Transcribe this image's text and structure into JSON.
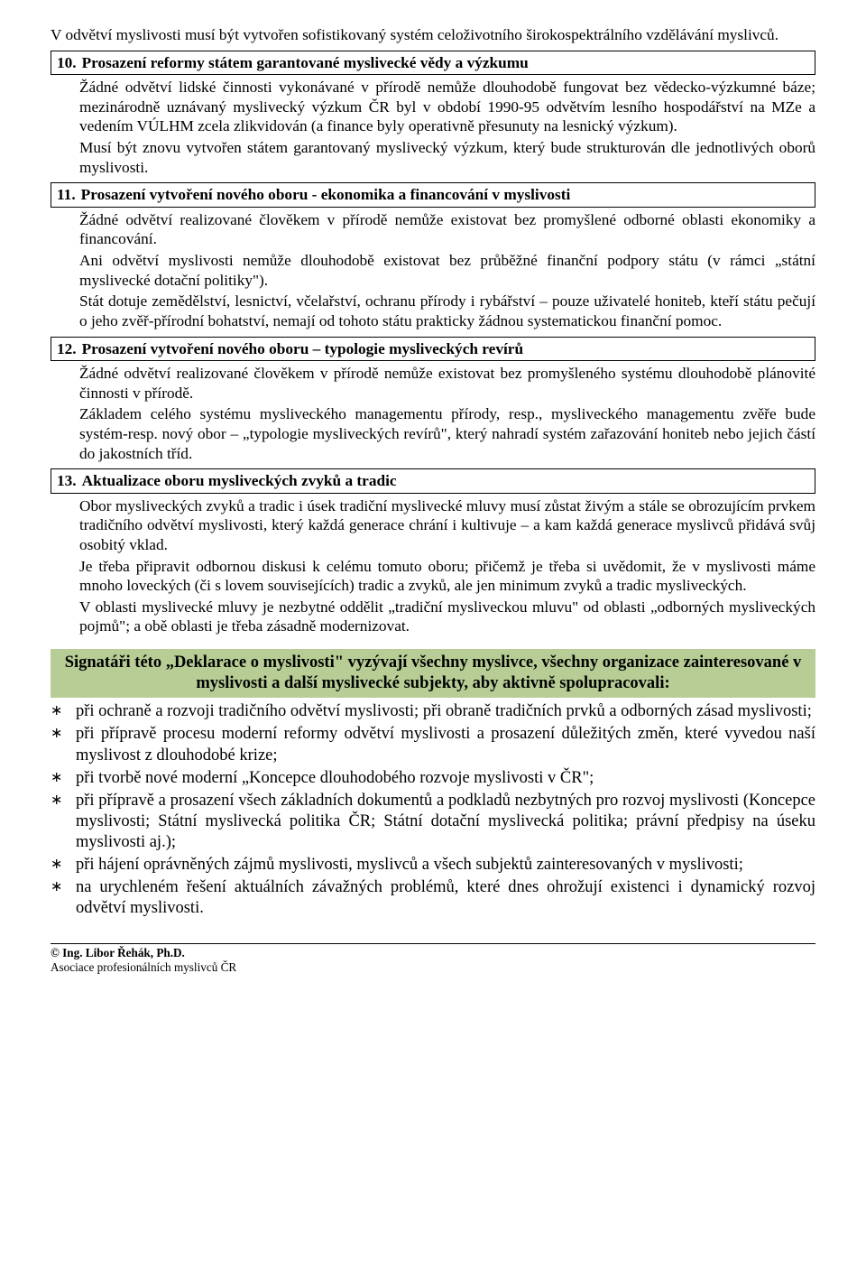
{
  "intro": "V odvětví myslivosti musí být vytvořen sofistikovaný systém celoživotního širokospektrálního vzdělávání myslivců.",
  "sections": [
    {
      "num": "10.",
      "title": "Prosazení reformy státem garantované myslivecké vědy a výzkumu",
      "paragraphs": [
        "Žádné odvětví lidské činnosti vykonávané v přírodě nemůže dlouhodobě fungovat bez vědecko-výzkumné báze; mezinárodně uznávaný myslivecký výzkum ČR byl v období 1990-95 odvětvím lesního hospodářství na MZe a vedením VÚLHM zcela zlikvidován (a finance byly operativně přesunuty na lesnický výzkum).",
        "Musí být znovu vytvořen státem garantovaný myslivecký výzkum, který bude strukturován dle jednotlivých oborů myslivosti."
      ]
    },
    {
      "num": "11.",
      "title": "Prosazení vytvoření nového oboru - ekonomika a financování v myslivosti",
      "paragraphs": [
        "Žádné odvětví realizované člověkem v přírodě nemůže existovat bez promyšlené odborné oblasti ekonomiky a financování.",
        "Ani odvětví myslivosti nemůže dlouhodobě existovat bez průběžné finanční podpory státu (v rámci „státní myslivecké dotační politiky\").",
        "Stát dotuje zemědělství, lesnictví, včelařství, ochranu přírody i rybářství – pouze uživatelé honiteb, kteří státu pečují o jeho zvěř-přírodní bohatství, nemají od tohoto státu prakticky žádnou systematickou finanční pomoc."
      ]
    },
    {
      "num": "12.",
      "title": "Prosazení vytvoření nového oboru – typologie mysliveckých revírů",
      "paragraphs": [
        "Žádné odvětví realizované člověkem v přírodě nemůže existovat bez promyšleného systému dlouhodobě plánovité činnosti v přírodě.",
        "Základem celého systému mysliveckého managementu přírody, resp., mysliveckého managementu zvěře bude systém-resp. nový obor – „typologie mysliveckých revírů\", který nahradí systém zařazování honiteb nebo jejich částí do jakostních tříd."
      ]
    },
    {
      "num": "13.",
      "title": "Aktualizace oboru mysliveckých zvyků a tradic",
      "paragraphs": [
        "Obor mysliveckých zvyků a tradic i úsek tradiční myslivecké mluvy musí zůstat živým a stále se obrozujícím prvkem tradičního odvětví myslivosti, který každá generace chrání i kultivuje – a kam každá generace myslivců přidává svůj osobitý vklad.",
        "Je třeba připravit odbornou diskusi k celému tomuto oboru; přičemž je třeba si uvědomit, že v myslivosti máme mnoho loveckých (či s lovem souvisejících) tradic a zvyků, ale jen minimum zvyků a tradic mysliveckých.",
        "V oblasti myslivecké mluvy je nezbytné oddělit „tradiční mysliveckou mluvu\" od oblasti „odborných mysliveckých pojmů\"; a obě oblasti je třeba zásadně modernizovat."
      ]
    }
  ],
  "callout": "Signatáři této „Deklarace o myslivosti\" vyzývají všechny myslivce, všechny organizace zainteresované v myslivosti a další myslivecké subjekty, aby aktivně spolupracovali:",
  "bullets": [
    "při ochraně a rozvoji tradičního odvětví myslivosti; při obraně tradičních prvků a odborných zásad myslivosti;",
    "při přípravě procesu moderní reformy odvětví myslivosti a prosazení důležitých změn, které vyvedou naší myslivost z dlouhodobé krize;",
    "při tvorbě nové moderní „Koncepce dlouhodobého rozvoje myslivosti v ČR\";",
    "při přípravě a prosazení všech základních dokumentů a podkladů nezbytných pro rozvoj myslivosti (Koncepce myslivosti; Státní myslivecká politika ČR; Státní dotační myslivecká politika; právní předpisy na úseku myslivosti aj.);",
    "při hájení oprávněných zájmů myslivosti, myslivců a všech subjektů zainteresovaných v myslivosti;",
    "na urychleném řešení aktuálních závažných problémů, které dnes ohrožují existenci i dynamický rozvoj odvětví myslivosti."
  ],
  "footer": {
    "author": "© Ing. Libor Řehák, Ph.D.",
    "org": "Asociace profesionálních myslivců ČR"
  },
  "colors": {
    "callout_bg": "#b7cd95",
    "text": "#000000",
    "background": "#ffffff"
  }
}
